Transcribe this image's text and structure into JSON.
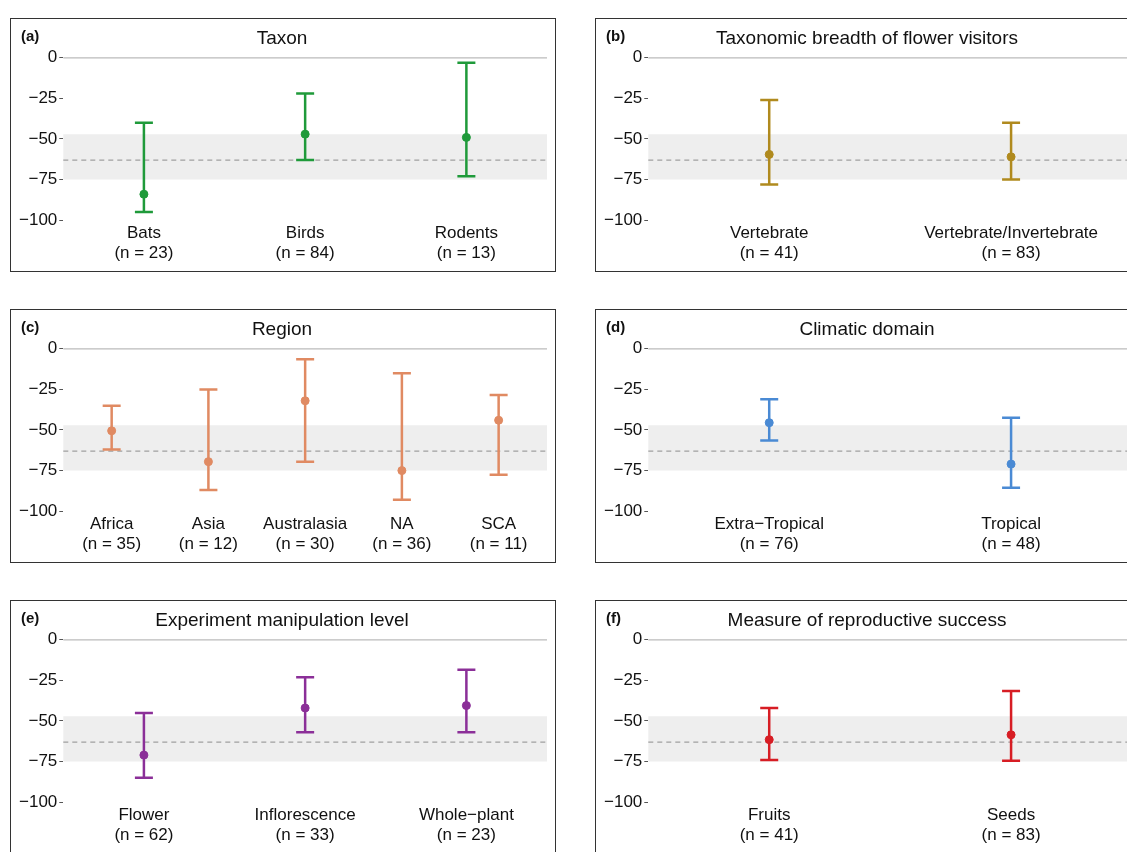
{
  "chart_data": [
    {
      "type": "scatter",
      "title": "Taxon",
      "annotations": [
        "(a)"
      ],
      "categories": [
        "Bats\n(n = 23)",
        "Birds\n(n = 84)",
        "Rodents\n(n = 13)"
      ],
      "marker": "circle",
      "grid": false,
      "legend": false,
      "ylim": [
        -100,
        0
      ],
      "yticks": [
        0,
        -25,
        -50,
        -75,
        -100
      ],
      "series": [
        {
          "color": "#1f9a3a",
          "values": [
            -84,
            -47,
            -49
          ],
          "errors": [
            [
              -95,
              -40
            ],
            [
              -63,
              -22
            ],
            [
              -73,
              -3
            ]
          ]
        }
      ],
      "bands": [
        {
          "axis": "y",
          "from": -75,
          "to": -47,
          "color": "#eeeeee"
        }
      ],
      "ref_lines": [
        {
          "axis": "y",
          "value": 0,
          "color": "#bbbbbb",
          "line_style": "solid"
        },
        {
          "axis": "y",
          "value": -63,
          "color": "#a0a0a0",
          "line_style": "dashed"
        }
      ]
    },
    {
      "type": "scatter",
      "title": "Taxonomic breadth of flower visitors",
      "annotations": [
        "(b)"
      ],
      "categories": [
        "Vertebrate\n(n = 41)",
        "Vertebrate/Invertebrate\n(n = 83)"
      ],
      "marker": "circle",
      "grid": false,
      "legend": false,
      "ylim": [
        -100,
        0
      ],
      "yticks": [
        0,
        -25,
        -50,
        -75,
        -100
      ],
      "series": [
        {
          "color": "#b08a1e",
          "values": [
            -59.5,
            -61
          ],
          "errors": [
            [
              -78,
              -26
            ],
            [
              -75,
              -40
            ]
          ]
        }
      ],
      "bands": [
        {
          "axis": "y",
          "from": -75,
          "to": -47,
          "color": "#eeeeee"
        }
      ],
      "ref_lines": [
        {
          "axis": "y",
          "value": 0,
          "color": "#bbbbbb",
          "line_style": "solid"
        },
        {
          "axis": "y",
          "value": -63,
          "color": "#a0a0a0",
          "line_style": "dashed"
        }
      ]
    },
    {
      "type": "scatter",
      "title": "Region",
      "annotations": [
        "(c)"
      ],
      "categories": [
        "Africa\n(n = 35)",
        "Asia\n(n = 12)",
        "Australasia\n(n = 30)",
        "NA\n(n = 36)",
        "SCA\n(n = 11)"
      ],
      "marker": "circle",
      "grid": false,
      "legend": false,
      "ylim": [
        -100,
        0
      ],
      "yticks": [
        0,
        -25,
        -50,
        -75,
        -100
      ],
      "series": [
        {
          "color": "#e08a62",
          "values": [
            -50.5,
            -69.5,
            -32,
            -75,
            -44
          ],
          "errors": [
            [
              -62,
              -35
            ],
            [
              -87,
              -25
            ],
            [
              -69.5,
              -6.5
            ],
            [
              -93,
              -15
            ],
            [
              -77.5,
              -28.5
            ]
          ]
        }
      ],
      "bands": [
        {
          "axis": "y",
          "from": -75,
          "to": -47,
          "color": "#eeeeee"
        }
      ],
      "ref_lines": [
        {
          "axis": "y",
          "value": 0,
          "color": "#bbbbbb",
          "line_style": "solid"
        },
        {
          "axis": "y",
          "value": -63,
          "color": "#a0a0a0",
          "line_style": "dashed"
        }
      ]
    },
    {
      "type": "scatter",
      "title": "Climatic domain",
      "annotations": [
        "(d)"
      ],
      "categories": [
        "Extra−Tropical\n(n = 76)",
        "Tropical\n(n = 48)"
      ],
      "marker": "circle",
      "grid": false,
      "legend": false,
      "ylim": [
        -100,
        0
      ],
      "yticks": [
        0,
        -25,
        -50,
        -75,
        -100
      ],
      "series": [
        {
          "color": "#4a8ad4",
          "values": [
            -45.5,
            -71
          ],
          "errors": [
            [
              -56.5,
              -31
            ],
            [
              -85.5,
              -42.5
            ]
          ]
        }
      ],
      "bands": [
        {
          "axis": "y",
          "from": -75,
          "to": -47,
          "color": "#eeeeee"
        }
      ],
      "ref_lines": [
        {
          "axis": "y",
          "value": 0,
          "color": "#bbbbbb",
          "line_style": "solid"
        },
        {
          "axis": "y",
          "value": -63,
          "color": "#a0a0a0",
          "line_style": "dashed"
        }
      ]
    },
    {
      "type": "scatter",
      "title": "Experiment manipulation level",
      "annotations": [
        "(e)"
      ],
      "categories": [
        "Flower\n(n = 62)",
        "Inflorescence\n(n = 33)",
        "Whole−plant\n(n = 23)"
      ],
      "marker": "circle",
      "grid": false,
      "legend": false,
      "ylim": [
        -100,
        0
      ],
      "yticks": [
        0,
        -25,
        -50,
        -75,
        -100
      ],
      "series": [
        {
          "color": "#8b2f98",
          "values": [
            -71,
            -42,
            -40.5
          ],
          "errors": [
            [
              -85,
              -45
            ],
            [
              -57,
              -23
            ],
            [
              -57,
              -18.5
            ]
          ]
        }
      ],
      "bands": [
        {
          "axis": "y",
          "from": -75,
          "to": -47,
          "color": "#eeeeee"
        }
      ],
      "ref_lines": [
        {
          "axis": "y",
          "value": 0,
          "color": "#bbbbbb",
          "line_style": "solid"
        },
        {
          "axis": "y",
          "value": -63,
          "color": "#a0a0a0",
          "line_style": "dashed"
        }
      ]
    },
    {
      "type": "scatter",
      "title": "Measure of reproductive success",
      "annotations": [
        "(f)"
      ],
      "categories": [
        "Fruits\n(n = 41)",
        "Seeds\n(n = 83)"
      ],
      "marker": "circle",
      "grid": false,
      "legend": false,
      "ylim": [
        -100,
        0
      ],
      "yticks": [
        0,
        -25,
        -50,
        -75,
        -100
      ],
      "series": [
        {
          "color": "#d71d24",
          "values": [
            -61.5,
            -58.5
          ],
          "errors": [
            [
              -74,
              -42
            ],
            [
              -74.5,
              -31.5
            ]
          ]
        }
      ],
      "bands": [
        {
          "axis": "y",
          "from": -75,
          "to": -47,
          "color": "#eeeeee"
        }
      ],
      "ref_lines": [
        {
          "axis": "y",
          "value": 0,
          "color": "#bbbbbb",
          "line_style": "solid"
        },
        {
          "axis": "y",
          "value": -63,
          "color": "#a0a0a0",
          "line_style": "dashed"
        }
      ]
    }
  ]
}
